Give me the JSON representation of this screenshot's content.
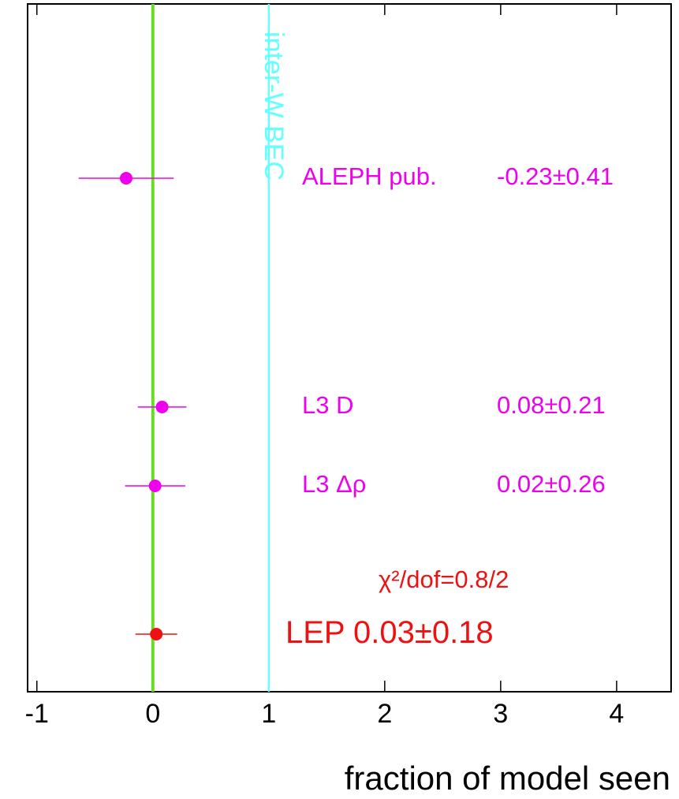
{
  "chart_data": {
    "type": "errorbar",
    "categories": [
      "ALEPH pub.",
      "L3 D",
      "L3 Δρ",
      "LEP"
    ],
    "values": [
      -0.23,
      0.08,
      0.02,
      0.03
    ],
    "errors": [
      0.41,
      0.21,
      0.26,
      0.18
    ],
    "value_labels": [
      "-0.23±0.41",
      "0.08±0.21",
      "0.02±0.26",
      "0.03±0.18"
    ],
    "colors": [
      "#ee00ee",
      "#ee00ee",
      "#ee00ee",
      "#ee1111"
    ],
    "xlabel": "fraction of model seen",
    "xlim": [
      -1.08,
      4.47
    ],
    "xticks": [
      -1,
      0,
      1,
      2,
      3,
      4
    ],
    "reference_lines": [
      {
        "value": 0,
        "color": "#66dd22"
      },
      {
        "value": 1,
        "color": "#66ffff",
        "label": "inter-W BEC"
      }
    ],
    "annotation": {
      "text": "χ²/dof=0.8/2",
      "color": "#ee1111"
    }
  }
}
